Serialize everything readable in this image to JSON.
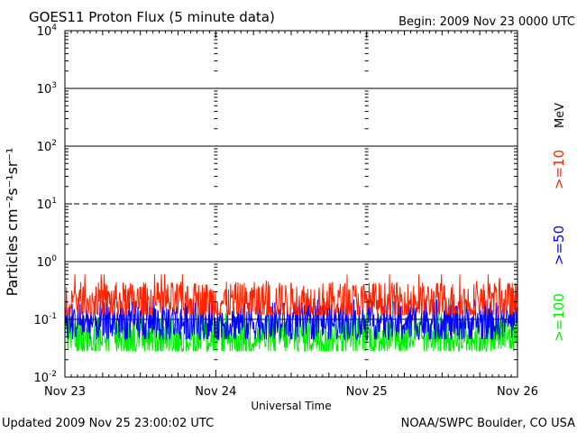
{
  "header": {
    "title": "GOES11 Proton Flux (5 minute data)",
    "begin": "Begin: 2009 Nov 23 0000 UTC"
  },
  "footer": {
    "updated": "Updated 2009 Nov 25 23:00:02 UTC",
    "credit": "NOAA/SWPC Boulder, CO USA"
  },
  "colors": {
    "ge10": "#ff2200",
    "ge50": "#0000ff",
    "ge100": "#00ee00",
    "axis": "#000000"
  },
  "chart_data": {
    "type": "line",
    "title": "GOES11 Proton Flux (5 minute data)",
    "xlabel": "Universal Time",
    "ylabel": "Particles cm⁻²s⁻¹sr⁻¹",
    "yscale": "log",
    "ylim": [
      0.01,
      10000
    ],
    "yticks": [
      {
        "value": 0.01,
        "base": "10",
        "exp": "-2"
      },
      {
        "value": 0.1,
        "base": "10",
        "exp": "-1"
      },
      {
        "value": 1,
        "base": "10",
        "exp": "0"
      },
      {
        "value": 10,
        "base": "10",
        "exp": "1"
      },
      {
        "value": 100,
        "base": "10",
        "exp": "2"
      },
      {
        "value": 1000,
        "base": "10",
        "exp": "3"
      },
      {
        "value": 10000,
        "base": "10",
        "exp": "4"
      }
    ],
    "xlim": [
      "2009-11-23",
      "2009-11-26"
    ],
    "xticks": [
      "Nov 23",
      "Nov 24",
      "Nov 25",
      "Nov 26"
    ],
    "x_step_minutes": 5,
    "grid": "horizontal decade lines; dashed at 10 (event threshold)",
    "legend_placement": "right, vertical",
    "legend_unit": "MeV",
    "series": [
      {
        "name": ">=10",
        "color": "#ff2200",
        "typical": 0.2,
        "min": 0.12,
        "max": 0.6
      },
      {
        "name": ">=50",
        "color": "#0000ff",
        "typical": 0.09,
        "min": 0.045,
        "max": 0.22
      },
      {
        "name": ">=100",
        "color": "#00ee00",
        "typical": 0.05,
        "min": 0.028,
        "max": 0.13
      }
    ]
  }
}
